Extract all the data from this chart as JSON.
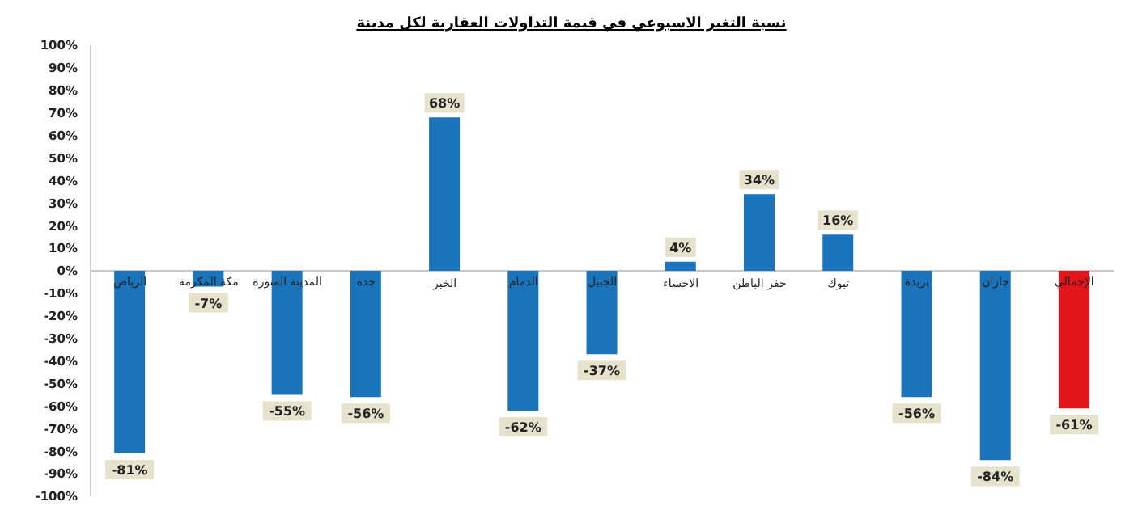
{
  "chart_data": {
    "type": "bar",
    "title": "نسبة التغير الاسبوعي في قيمة التداولات العقارية لكل مدينة",
    "categories": [
      "الرياض",
      "مكة المكرمة",
      "المدينة المنورة",
      "جدة",
      "الخبر",
      "الدمام",
      "الجبيل",
      "الاحساء",
      "حفر الباطن",
      "تبوك",
      "بريدة",
      "جازان",
      "الإجمالي"
    ],
    "values": [
      -81,
      -7,
      -55,
      -56,
      68,
      -62,
      -37,
      4,
      34,
      16,
      -56,
      -84,
      -61
    ],
    "colors": [
      "#1a74bb",
      "#1a74bb",
      "#1a74bb",
      "#1a74bb",
      "#1a74bb",
      "#1a74bb",
      "#1a74bb",
      "#1a74bb",
      "#1a74bb",
      "#1a74bb",
      "#1a74bb",
      "#1a74bb",
      "#e3151b"
    ],
    "value_labels": [
      "-81%",
      "-7%",
      "-55%",
      "-56%",
      "68%",
      "-62%",
      "-37%",
      "4%",
      "34%",
      "16%",
      "-56%",
      "-84%",
      "-61%"
    ],
    "ylim": [
      -100,
      100
    ],
    "yticks": [
      {
        "value": 100,
        "label": "100%"
      },
      {
        "value": 90,
        "label": "90%"
      },
      {
        "value": 80,
        "label": "80%"
      },
      {
        "value": 70,
        "label": "70%"
      },
      {
        "value": 60,
        "label": "60%"
      },
      {
        "value": 50,
        "label": "50%"
      },
      {
        "value": 40,
        "label": "40%"
      },
      {
        "value": 30,
        "label": "30%"
      },
      {
        "value": 20,
        "label": "20%"
      },
      {
        "value": 10,
        "label": "10%"
      },
      {
        "value": 0,
        "label": "0%"
      },
      {
        "value": -10,
        "label": "-10%"
      },
      {
        "value": -20,
        "label": "-20%"
      },
      {
        "value": -30,
        "label": "-30%"
      },
      {
        "value": -40,
        "label": "-40%"
      },
      {
        "value": -50,
        "label": "-50%"
      },
      {
        "value": -60,
        "label": "-60%"
      },
      {
        "value": -70,
        "label": "-70%"
      },
      {
        "value": -80,
        "label": "-80%"
      },
      {
        "value": -90,
        "label": "-90%"
      },
      {
        "value": -100,
        "label": "-100%"
      }
    ],
    "grid": false,
    "legend": false
  }
}
